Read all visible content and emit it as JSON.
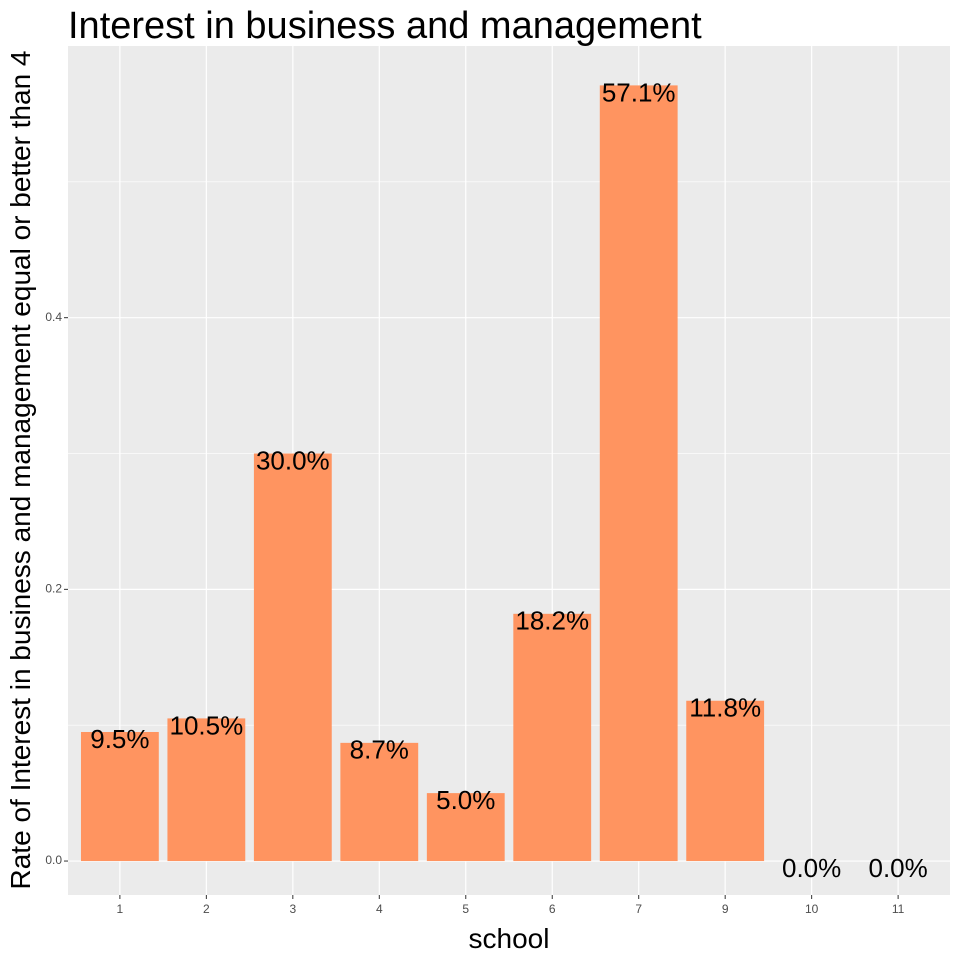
{
  "chart_data": {
    "type": "bar",
    "title": "Interest in business and management",
    "xlabel": "school",
    "ylabel": "Rate of Interest in business and management equal or better than 4",
    "categories": [
      "1",
      "2",
      "3",
      "4",
      "5",
      "6",
      "7",
      "9",
      "10",
      "11"
    ],
    "values": [
      0.095,
      0.105,
      0.3,
      0.087,
      0.05,
      0.182,
      0.571,
      0.118,
      0.0,
      0.0
    ],
    "data_labels": [
      "9.5%",
      "10.5%",
      "30.0%",
      "8.7%",
      "5.0%",
      "18.2%",
      "57.1%",
      "11.8%",
      "0.0%",
      "0.0%"
    ],
    "ylim": [
      -0.025,
      0.6
    ],
    "yticks": [
      0.0,
      0.2,
      0.4
    ],
    "ytick_labels": [
      "0.0",
      "0.2",
      "0.4"
    ],
    "grid": true,
    "legend": "none",
    "colors": {
      "bar": "#FF9460",
      "panel": "#EBEBEB",
      "grid_major": "#FFFFFF",
      "text": "#000000",
      "tick_text": "#4D4D4D",
      "tick_mark": "#333333"
    }
  }
}
